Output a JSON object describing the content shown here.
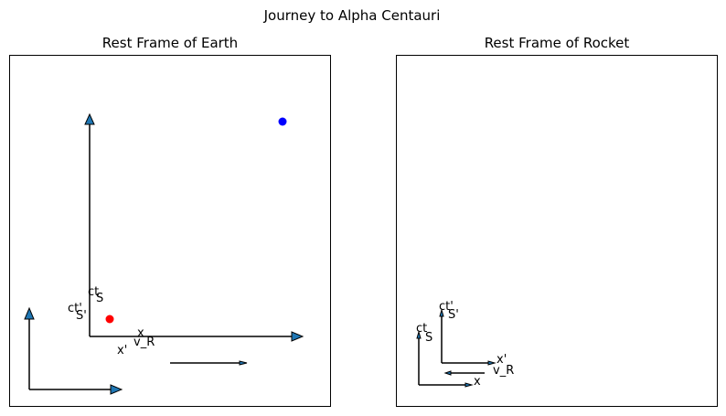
{
  "figure": {
    "title": "Journey to Alpha Centauri"
  },
  "panels": [
    {
      "title": "Rest Frame of Earth",
      "labels": {
        "ct": "ct",
        "S": "S",
        "ct_prime": "ct'",
        "S_prime": "S'",
        "x": "x",
        "x_prime": "x'",
        "v_R": "v_R"
      },
      "points": [
        {
          "name": "red-dot",
          "color": "#ff0000"
        },
        {
          "name": "blue-dot",
          "color": "#0000ff"
        }
      ]
    },
    {
      "title": "Rest Frame of Rocket",
      "labels": {
        "ct_prime": "ct'",
        "S_prime": "S'",
        "ct": "ct",
        "S": "S",
        "x_prime": "x'",
        "v_R": "v_R",
        "x": "x"
      }
    }
  ],
  "colors": {
    "arrow_fill": "#1f77b4",
    "axes_frame": "#000000"
  }
}
